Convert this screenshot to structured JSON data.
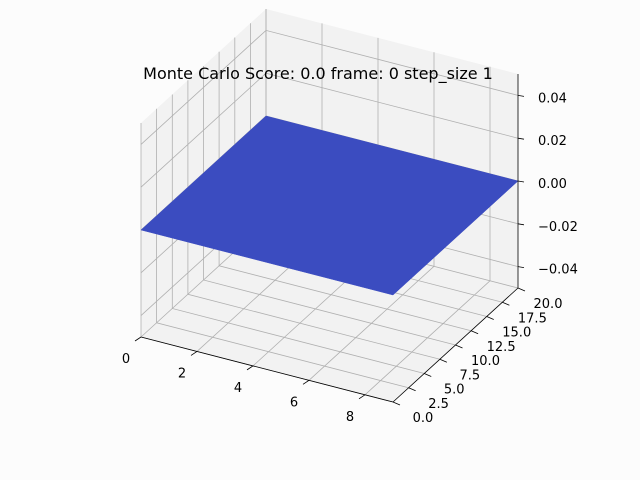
{
  "chart_data": {
    "type": "surface3d",
    "title": "Monte Carlo Score: 0.0 frame: 0 step_size 1",
    "x_ticks": [
      "0",
      "2",
      "4",
      "6",
      "8"
    ],
    "y_ticks": [
      "0.0",
      "2.5",
      "5.0",
      "7.5",
      "10.0",
      "12.5",
      "15.0",
      "17.5",
      "20.0"
    ],
    "z_ticks": [
      "0.04",
      "0.02",
      "0.00",
      "−0.02",
      "−0.04"
    ],
    "xlim": [
      0,
      9
    ],
    "ylim": [
      0,
      20
    ],
    "zlim": [
      -0.05,
      0.05
    ],
    "surface_z": 0.0,
    "surface_color": "#3b4cc0",
    "grid": true
  }
}
